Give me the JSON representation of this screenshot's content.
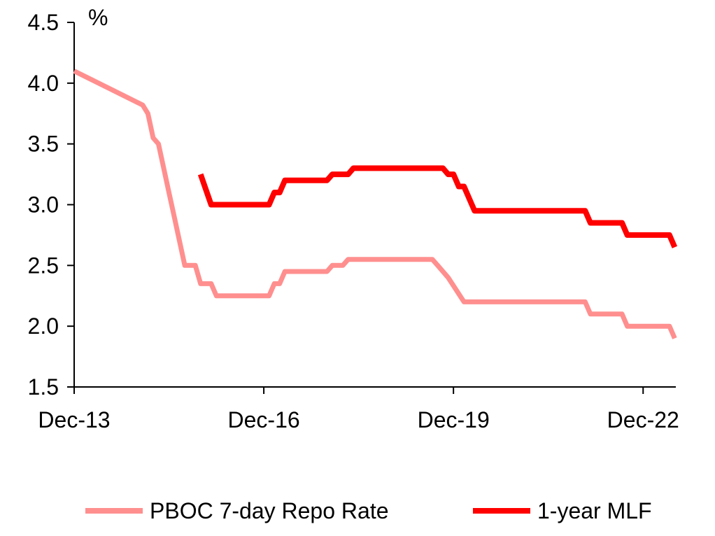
{
  "chart_data": {
    "type": "line",
    "title": "",
    "xlabel": "",
    "ylabel": "%",
    "ylim": [
      1.5,
      4.5
    ],
    "yticks": [
      "1.5",
      "2.0",
      "2.5",
      "3.0",
      "3.5",
      "4.0",
      "4.5"
    ],
    "xticks": [
      "Dec-13",
      "Dec-16",
      "Dec-19",
      "Dec-22"
    ],
    "xlim": [
      "2013-12",
      "2023-06"
    ],
    "grid": false,
    "legend_position": "bottom",
    "series": [
      {
        "name": "PBOC 7-day Repo Rate",
        "color": "#ff8f8f",
        "points": [
          [
            "2013-12",
            4.1
          ],
          [
            "2015-01",
            3.82
          ],
          [
            "2015-02",
            3.75
          ],
          [
            "2015-03",
            3.55
          ],
          [
            "2015-04",
            3.5
          ],
          [
            "2015-05",
            3.3
          ],
          [
            "2015-06",
            3.1
          ],
          [
            "2015-07",
            2.9
          ],
          [
            "2015-08",
            2.7
          ],
          [
            "2015-09",
            2.5
          ],
          [
            "2015-10",
            2.5
          ],
          [
            "2015-11",
            2.5
          ],
          [
            "2015-12",
            2.35
          ],
          [
            "2016-02",
            2.35
          ],
          [
            "2016-03",
            2.25
          ],
          [
            "2017-01",
            2.25
          ],
          [
            "2017-02",
            2.35
          ],
          [
            "2017-03",
            2.35
          ],
          [
            "2017-04",
            2.45
          ],
          [
            "2017-12",
            2.45
          ],
          [
            "2018-01",
            2.5
          ],
          [
            "2018-03",
            2.5
          ],
          [
            "2018-04",
            2.55
          ],
          [
            "2019-08",
            2.55
          ],
          [
            "2019-09",
            2.5
          ],
          [
            "2019-11",
            2.4
          ],
          [
            "2020-02",
            2.2
          ],
          [
            "2022-01",
            2.2
          ],
          [
            "2022-02",
            2.1
          ],
          [
            "2022-08",
            2.1
          ],
          [
            "2022-09",
            2.0
          ],
          [
            "2023-05",
            2.0
          ],
          [
            "2023-06",
            1.9
          ]
        ]
      },
      {
        "name": "1-year MLF",
        "color": "#ff0000",
        "points": [
          [
            "2015-12",
            3.25
          ],
          [
            "2016-02",
            3.0
          ],
          [
            "2017-01",
            3.0
          ],
          [
            "2017-02",
            3.1
          ],
          [
            "2017-03",
            3.1
          ],
          [
            "2017-04",
            3.2
          ],
          [
            "2017-12",
            3.2
          ],
          [
            "2018-01",
            3.25
          ],
          [
            "2018-04",
            3.25
          ],
          [
            "2018-05",
            3.3
          ],
          [
            "2019-10",
            3.3
          ],
          [
            "2019-11",
            3.25
          ],
          [
            "2019-12",
            3.25
          ],
          [
            "2020-01",
            3.15
          ],
          [
            "2020-02",
            3.15
          ],
          [
            "2020-04",
            2.95
          ],
          [
            "2022-01",
            2.95
          ],
          [
            "2022-02",
            2.85
          ],
          [
            "2022-08",
            2.85
          ],
          [
            "2022-09",
            2.75
          ],
          [
            "2023-05",
            2.75
          ],
          [
            "2023-06",
            2.65
          ]
        ]
      }
    ]
  }
}
